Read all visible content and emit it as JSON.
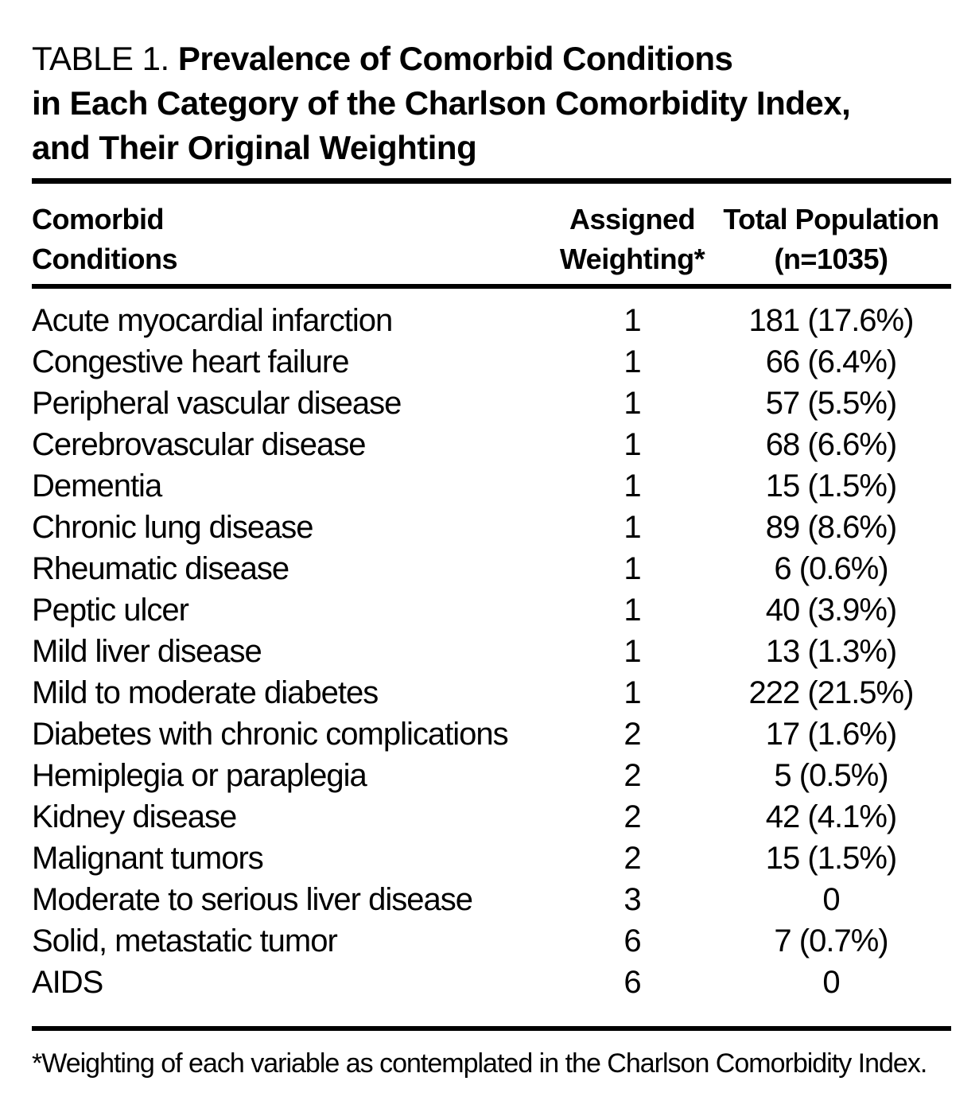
{
  "title": {
    "prefix": "TABLE 1.",
    "line1_bold": "Prevalence of Comorbid Conditions",
    "line2": "in Each Category of the Charlson Comorbidity Index,",
    "line3": "and Their Original Weighting"
  },
  "header": {
    "col1_line1": "Comorbid",
    "col1_line2": "Conditions",
    "col2_line1": "Assigned",
    "col2_line2": "Weighting*",
    "col3_line1": "Total Population",
    "col3_line2": "(n=1035)"
  },
  "footnote": "*Weighting of each variable as contemplated in the Charlson Comorbidity Index.",
  "colors": {
    "text": "#000000",
    "background": "#ffffff",
    "rule": "#000000"
  },
  "chart_data": {
    "type": "table",
    "title": "TABLE 1. Prevalence of Comorbid Conditions in Each Category of the Charlson Comorbidity Index, and Their Original Weighting",
    "columns": [
      "Comorbid Conditions",
      "Assigned Weighting*",
      "Total Population (n=1035)"
    ],
    "rows": [
      [
        "Acute myocardial infarction",
        "1",
        "181 (17.6%)"
      ],
      [
        "Congestive heart failure",
        "1",
        "66 (6.4%)"
      ],
      [
        "Peripheral vascular disease",
        "1",
        "57 (5.5%)"
      ],
      [
        "Cerebrovascular disease",
        "1",
        "68 (6.6%)"
      ],
      [
        "Dementia",
        "1",
        "15 (1.5%)"
      ],
      [
        "Chronic lung disease",
        "1",
        "89 (8.6%)"
      ],
      [
        "Rheumatic disease",
        "1",
        "6 (0.6%)"
      ],
      [
        "Peptic ulcer",
        "1",
        "40 (3.9%)"
      ],
      [
        "Mild liver disease",
        "1",
        "13 (1.3%)"
      ],
      [
        "Mild to moderate diabetes",
        "1",
        "222 (21.5%)"
      ],
      [
        "Diabetes with chronic complications",
        "2",
        "17 (1.6%)"
      ],
      [
        "Hemiplegia or paraplegia",
        "2",
        "5 (0.5%)"
      ],
      [
        "Kidney disease",
        "2",
        "42 (4.1%)"
      ],
      [
        "Malignant tumors",
        "2",
        "15 (1.5%)"
      ],
      [
        "Moderate to serious liver disease",
        "3",
        "0"
      ],
      [
        "Solid, metastatic tumor",
        "6",
        "7 (0.7%)"
      ],
      [
        "AIDS",
        "6",
        "0"
      ]
    ],
    "footnote": "*Weighting of each variable as contemplated in the Charlson Comorbidity Index."
  }
}
